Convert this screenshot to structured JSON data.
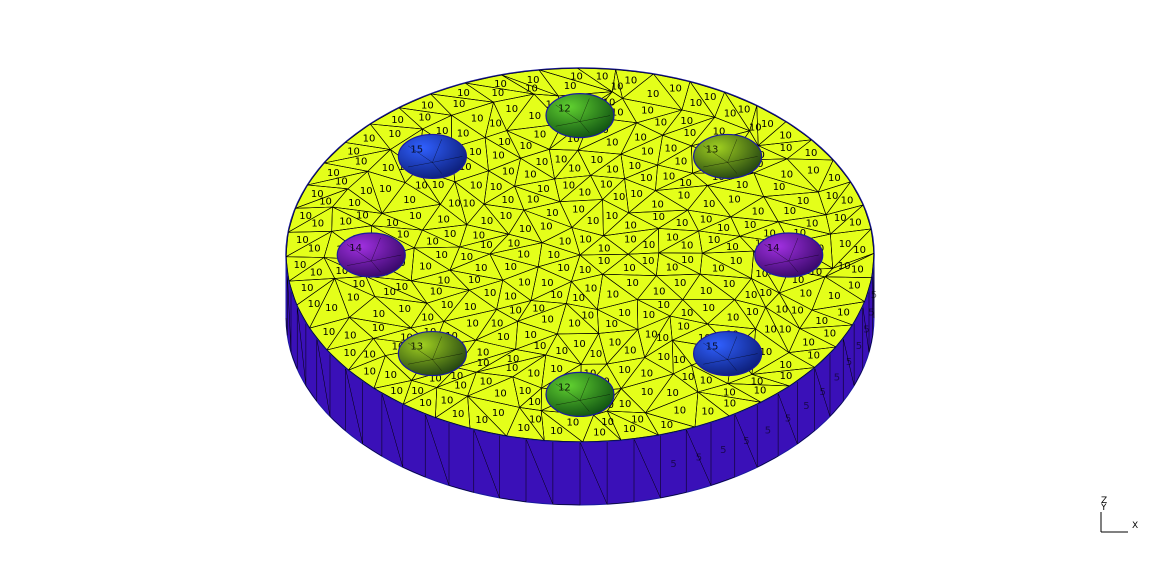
{
  "colors": {
    "background": "#ffffff",
    "top_face": "#e4ff1a",
    "side_face": "#3a10b8",
    "side_face_dark": "#2a0a90",
    "outline": "#1a1aa0",
    "mesh": "#000000",
    "hole_blue": "#1838c0",
    "hole_green": "#38b020",
    "hole_purple": "#7010b0",
    "hole_olive": "#78b010"
  },
  "mesh": {
    "top_element_label": "10",
    "side_element_label": "5",
    "hole_label_values": [
      "12",
      "13",
      "14",
      "15"
    ]
  },
  "holes": [
    {
      "name": "top",
      "color_key": "hole_green"
    },
    {
      "name": "upper-right",
      "color_key": "hole_olive"
    },
    {
      "name": "right",
      "color_key": "hole_purple"
    },
    {
      "name": "lower-right",
      "color_key": "hole_blue"
    },
    {
      "name": "bottom",
      "color_key": "hole_green"
    },
    {
      "name": "lower-left",
      "color_key": "hole_olive"
    },
    {
      "name": "left",
      "color_key": "hole_purple"
    },
    {
      "name": "upper-left",
      "color_key": "hole_blue"
    }
  ],
  "axes": {
    "z_label": "Z",
    "y_label": "Y",
    "x_label": "X"
  }
}
